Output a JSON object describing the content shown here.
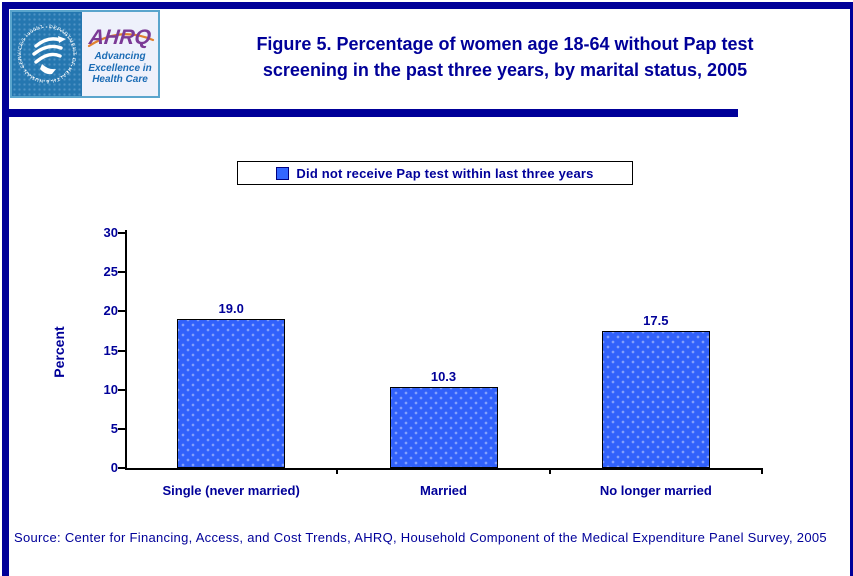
{
  "header": {
    "title_lines": [
      "Figure 5. Percentage of women age 18-64 without Pap test",
      "screening in the past three years, by marital status, 2005"
    ]
  },
  "logo": {
    "seal_text": "DEPARTMENT OF HEALTH & HUMAN SERVICES · USA",
    "ahrq_acronym": "AHRQ",
    "tagline_lines": [
      "Advancing",
      "Excellence in",
      "Health Care"
    ]
  },
  "chart_data": {
    "type": "bar",
    "title": "Figure 5. Percentage of women age 18-64 without Pap test screening in the past three years, by marital status, 2005",
    "categories": [
      "Single (never married)",
      "Married",
      "No longer married"
    ],
    "values": [
      19.0,
      10.3,
      17.5
    ],
    "value_labels": [
      "19.0",
      "10.3",
      "17.5"
    ],
    "series": [
      {
        "name": "Did not receive Pap test within last three years",
        "values": [
          19.0,
          10.3,
          17.5
        ]
      }
    ],
    "legend": [
      "Did not receive Pap test within last three years"
    ],
    "legend_position": "top",
    "xlabel": "",
    "ylabel": "Percent",
    "ylim": [
      0,
      30
    ],
    "yticks": [
      0,
      5,
      10,
      15,
      20,
      25,
      30
    ],
    "grid": false
  },
  "source": {
    "text": "Source: Center for Financing, Access, and Cost Trends, AHRQ,  Household Component of the Medical Expenditure Panel Survey, 2005"
  },
  "colors": {
    "accent_navy": "#000099",
    "bar_fill": "#3161fa",
    "bar_dot": "#83a0fc",
    "legend_marker": "#3366FF",
    "hhs_panel_blue": "#2577b0",
    "ahrq_purple": "#7b3a96",
    "ahrq_tagline_blue": "#1b6cb5",
    "swoosh_orange": "#e08030",
    "axis_black": "#000000"
  }
}
